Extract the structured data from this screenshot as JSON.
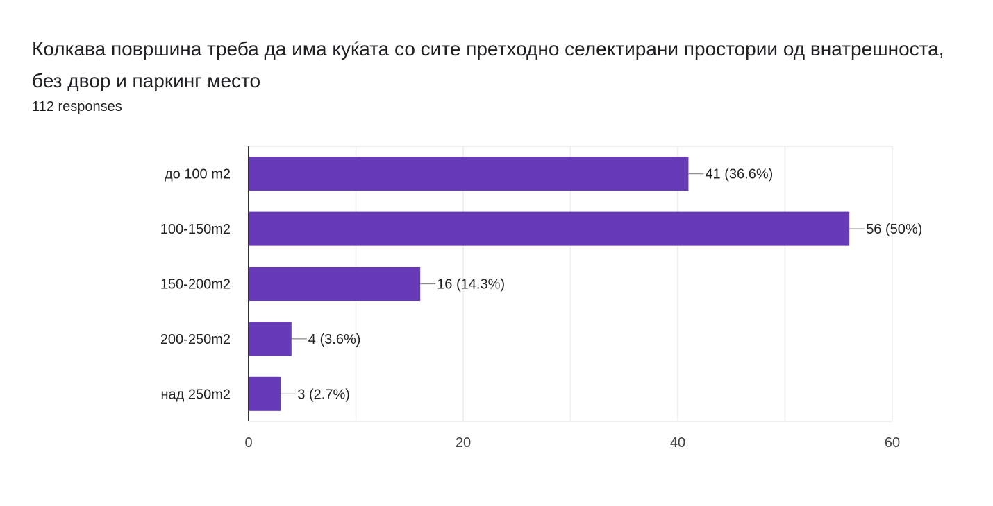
{
  "header": {
    "title": "Колкава површина треба да има куќата со сите претходно селектирани простории од внатрешноста, без двор и паркинг место",
    "responses": "112 responses"
  },
  "chart_data": {
    "type": "bar",
    "orientation": "horizontal",
    "title": "Колкава површина треба да има куќата со сите претходно селектирани простории од внатрешноста, без двор и паркинг место",
    "categories": [
      "до 100 m2",
      "100-150m2",
      "150-200m2",
      "200-250m2",
      "над 250m2"
    ],
    "values": [
      41,
      56,
      16,
      4,
      3
    ],
    "data_labels": [
      "41 (36.6%)",
      "56 (50%)",
      "16 (14.3%)",
      "4 (3.6%)",
      "3 (2.7%)"
    ],
    "xlim": [
      0,
      60
    ],
    "x_ticks": [
      0,
      20,
      40,
      60
    ],
    "x_tick_labels": [
      "0",
      "20",
      "40",
      "60"
    ],
    "grid": true,
    "legend": "none",
    "xlabel": "",
    "ylabel": "",
    "colors": {
      "bar": "#673ab7",
      "grid": "#ececec",
      "axis": "#333333",
      "leader": "#888888"
    }
  }
}
